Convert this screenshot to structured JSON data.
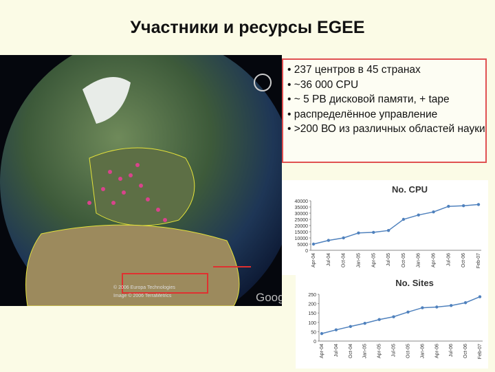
{
  "title": "Участники и ресурсы EGEE",
  "bullets": [
    "• 237 центров в 45 странах",
    "• ~36 000 CPU",
    "• ~ 5 PB дисковой памяти, + tape",
    "• распределённое управление",
    "• >200 ВО из различных областей науки"
  ],
  "globe": {
    "credits": [
      "© 2006 Europa Technologies",
      "Image © 2006 TerraMetrics"
    ],
    "logo": "Google"
  },
  "chart_data": [
    {
      "type": "line",
      "title": "No. CPU",
      "color": "#4f81bd",
      "categories": [
        "Apr-04",
        "Jul-04",
        "Oct-04",
        "Jan-05",
        "Apr-05",
        "Jul-05",
        "Oct-05",
        "Jan-06",
        "Apr-06",
        "Jul-06",
        "Oct-06",
        "Feb-07"
      ],
      "values": [
        5000,
        8000,
        10000,
        14000,
        14500,
        16000,
        25000,
        28500,
        31000,
        35500,
        36000,
        37000
      ],
      "ylim": [
        0,
        40000
      ],
      "yticks": [
        0,
        5000,
        10000,
        15000,
        20000,
        25000,
        30000,
        35000,
        40000
      ]
    },
    {
      "type": "line",
      "title": "No. Sites",
      "color": "#4f81bd",
      "categories": [
        "Apr-04",
        "Jul-04",
        "Oct-04",
        "Jan-05",
        "Apr-05",
        "Jul-05",
        "Oct-05",
        "Jan-06",
        "Apr-06",
        "Jul-06",
        "Oct-06",
        "Feb-07"
      ],
      "values": [
        40,
        60,
        78,
        95,
        115,
        130,
        155,
        178,
        182,
        190,
        205,
        237
      ],
      "ylim": [
        0,
        250
      ],
      "yticks": [
        0,
        50,
        100,
        150,
        200,
        250
      ]
    }
  ]
}
